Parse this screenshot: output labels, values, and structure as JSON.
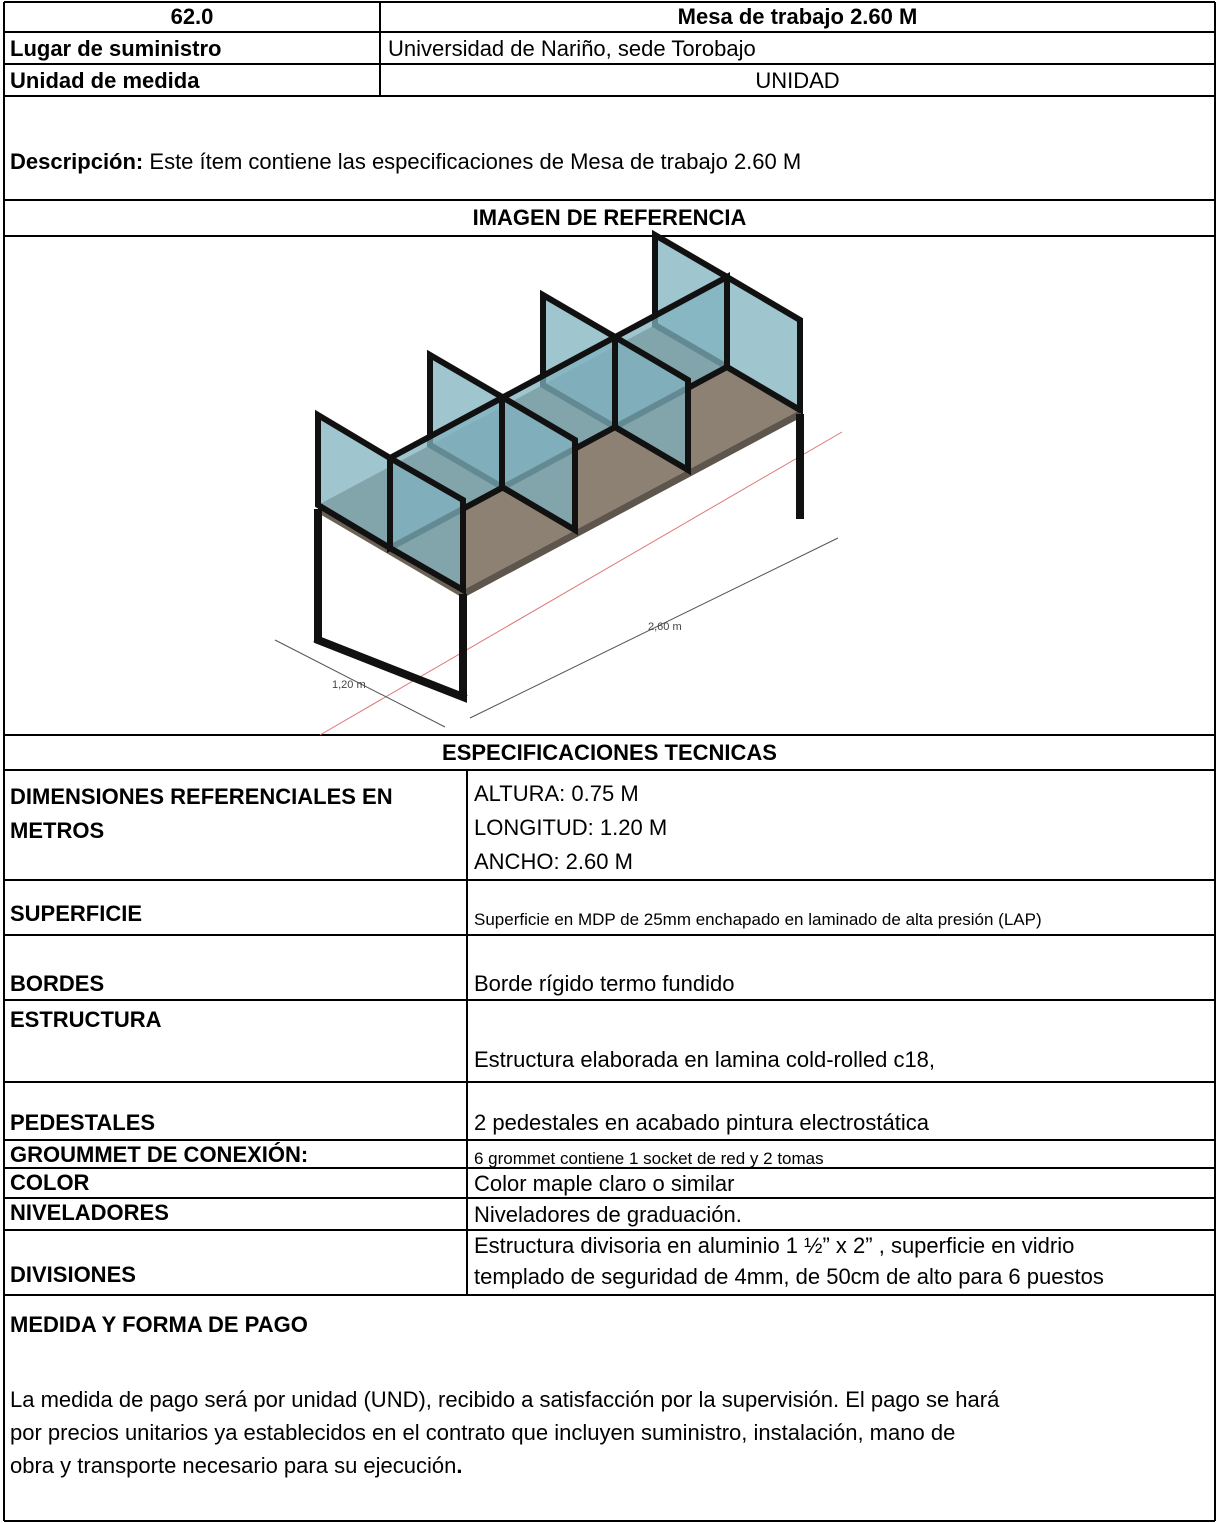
{
  "header": {
    "number": "62.0",
    "title": "Mesa de trabajo 2.60 M"
  },
  "info": [
    {
      "label": "Lugar de suministro",
      "value": "Universidad de Nariño, sede Torobajo"
    },
    {
      "label": "Unidad de medida",
      "value": "UNIDAD"
    }
  ],
  "description": {
    "label": "Descripción:",
    "text": "Este ítem contiene las especificaciones de Mesa de trabajo 2.60 M"
  },
  "image_section": {
    "title": "IMAGEN DE REFERENCIA",
    "dimension_labels": [
      "2,60 m",
      "1,20 m"
    ]
  },
  "specs": {
    "title": "ESPECIFICACIONES TECNICAS",
    "rows": [
      {
        "label": "DIMENSIONES REFERENCIALES EN METROS",
        "lines": [
          "ALTURA: 0.75 M",
          "LONGITUD: 1.20 M",
          "ANCHO: 2.60 M"
        ]
      },
      {
        "label": "SUPERFICIE",
        "lines": [
          "Superficie en MDP de 25mm enchapado en laminado de alta presión (LAP)"
        ]
      },
      {
        "label": "BORDES",
        "lines": [
          "Borde rígido termo fundido"
        ]
      },
      {
        "label": "ESTRUCTURA",
        "lines": [
          "Estructura elaborada en lamina cold-rolled c18,"
        ]
      },
      {
        "label": "PEDESTALES",
        "lines": [
          "2 pedestales en acabado pintura electrostática"
        ]
      },
      {
        "label": "GROUMMET DE CONEXIÓN:",
        "lines": [
          "6 grommet contiene 1 socket de red y 2 tomas"
        ]
      },
      {
        "label": "COLOR",
        "lines": [
          "Color maple claro o similar"
        ]
      },
      {
        "label": "NIVELADORES",
        "lines": [
          "Niveladores de graduación."
        ]
      },
      {
        "label": "DIVISIONES",
        "lines": [
          "Estructura divisoria en aluminio 1 ½” x 2” , superficie en vidrio",
          "templado de seguridad de 4mm, de 50cm de alto para 6 puestos"
        ]
      }
    ]
  },
  "payment": {
    "title": "MEDIDA Y FORMA DE PAGO",
    "lines": [
      "La medida de pago será por unidad (UND), recibido a satisfacción por la supervisión. El pago se hará",
      "por precios unitarios ya establecidos en el contrato que incluyen suministro, instalación, mano de",
      "obra y transporte necesario para su ejecución"
    ],
    "closing": "."
  }
}
